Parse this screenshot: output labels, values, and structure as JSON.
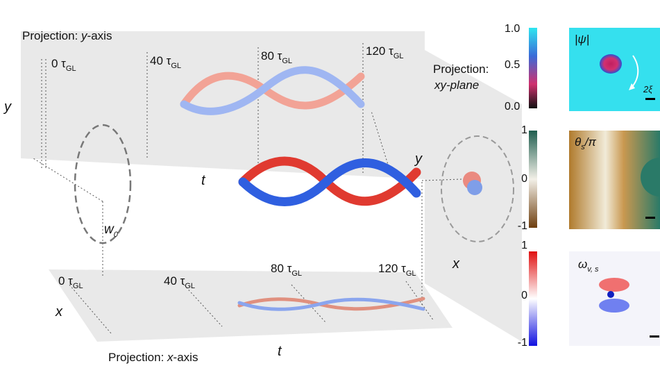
{
  "top_projection": {
    "title": {
      "prefix": "Projection: ",
      "axis": "y",
      "suffix": "-axis"
    },
    "time_labels": [
      {
        "text": "0 τ",
        "sub": "GL"
      },
      {
        "text": "40 τ",
        "sub": "GL"
      },
      {
        "text": "80 τ",
        "sub": "GL"
      },
      {
        "text": "120 τ",
        "sub": "GL"
      }
    ],
    "axis_label": "y"
  },
  "main": {
    "axis_y": "y",
    "axis_t": "t",
    "waist": {
      "text": "w",
      "sub": "0"
    }
  },
  "right_projection": {
    "title_line1": "Projection:",
    "title_line2": "xy-plane",
    "axis_y": "y",
    "axis_x": "x"
  },
  "bottom_projection": {
    "title": {
      "prefix": "Projection: ",
      "axis": "x",
      "suffix": "-axis"
    },
    "time_labels": [
      {
        "text": "0 τ",
        "sub": "GL"
      },
      {
        "text": "40 τ",
        "sub": "GL"
      },
      {
        "text": "80 τ",
        "sub": "GL"
      },
      {
        "text": "120 τ",
        "sub": "GL"
      }
    ],
    "axis_x": "x",
    "axis_t": "t"
  },
  "panels": [
    {
      "label": "|ψ|",
      "ticks": [
        "1.0",
        "0.5",
        "0.0"
      ],
      "scale_bar": "2ξ"
    },
    {
      "label": {
        "text": "θ",
        "sub": "s",
        "suffix": "/π"
      },
      "ticks": [
        "1",
        "0",
        "-1"
      ]
    },
    {
      "label": {
        "text": "ω",
        "sub": "v, s"
      },
      "ticks": [
        "1",
        "0",
        "-1"
      ]
    }
  ]
}
